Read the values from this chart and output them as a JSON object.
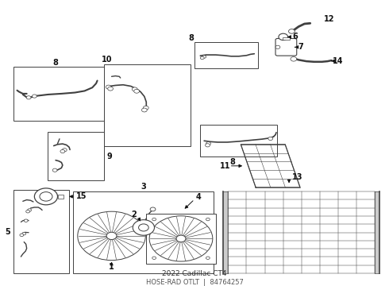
{
  "title": "2022 Cadillac CT4",
  "subtitle": "HOSE-RAD OTLT",
  "part_number": "84764257",
  "bg": "#ffffff",
  "lc": "#404040",
  "fig_w": 4.9,
  "fig_h": 3.6,
  "dpi": 100,
  "boxes": {
    "8_main": [
      0.03,
      0.57,
      0.245,
      0.195
    ],
    "8_small": [
      0.5,
      0.76,
      0.165,
      0.095
    ],
    "10": [
      0.265,
      0.48,
      0.225,
      0.295
    ],
    "8_mid": [
      0.515,
      0.44,
      0.2,
      0.115
    ],
    "9": [
      0.12,
      0.355,
      0.145,
      0.175
    ],
    "5": [
      0.03,
      0.02,
      0.145,
      0.3
    ],
    "3": [
      0.185,
      0.02,
      0.365,
      0.295
    ],
    "13_outer": [
      0.575,
      0.02,
      0.405,
      0.295
    ]
  }
}
